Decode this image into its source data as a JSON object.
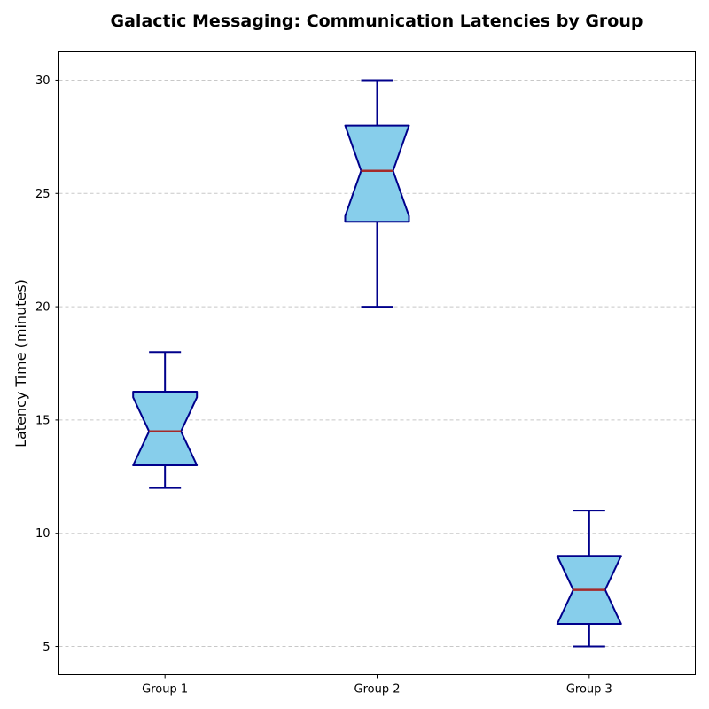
{
  "chart_data": {
    "type": "boxplot",
    "title": "Galactic Messaging: Communication Latencies by Group",
    "xlabel": "",
    "ylabel": "Latency Time (minutes)",
    "categories": [
      "Group 1",
      "Group 2",
      "Group 3"
    ],
    "boxes": [
      {
        "name": "Group 1",
        "whisker_low": 12,
        "q1": 13,
        "median": 14.5,
        "q3": 16.25,
        "whisker_high": 18,
        "notch_low": 13.0,
        "notch_high": 16.0
      },
      {
        "name": "Group 2",
        "whisker_low": 20,
        "q1": 23.75,
        "median": 26,
        "q3": 28,
        "whisker_high": 30,
        "notch_low": 24.0,
        "notch_high": 28.0
      },
      {
        "name": "Group 3",
        "whisker_low": 5,
        "q1": 6,
        "median": 7.5,
        "q3": 9,
        "whisker_high": 11,
        "notch_low": 6.0,
        "notch_high": 9.0
      }
    ],
    "ylim": [
      3.75,
      31.25
    ],
    "yticks": [
      5,
      10,
      15,
      20,
      25,
      30
    ],
    "grid": "y, dashed",
    "notched": true,
    "colors": {
      "box_fill": "#87ceeb",
      "box_edge": "#00008b",
      "median": "#a52a2a",
      "grid": "#c8c8c8"
    }
  }
}
